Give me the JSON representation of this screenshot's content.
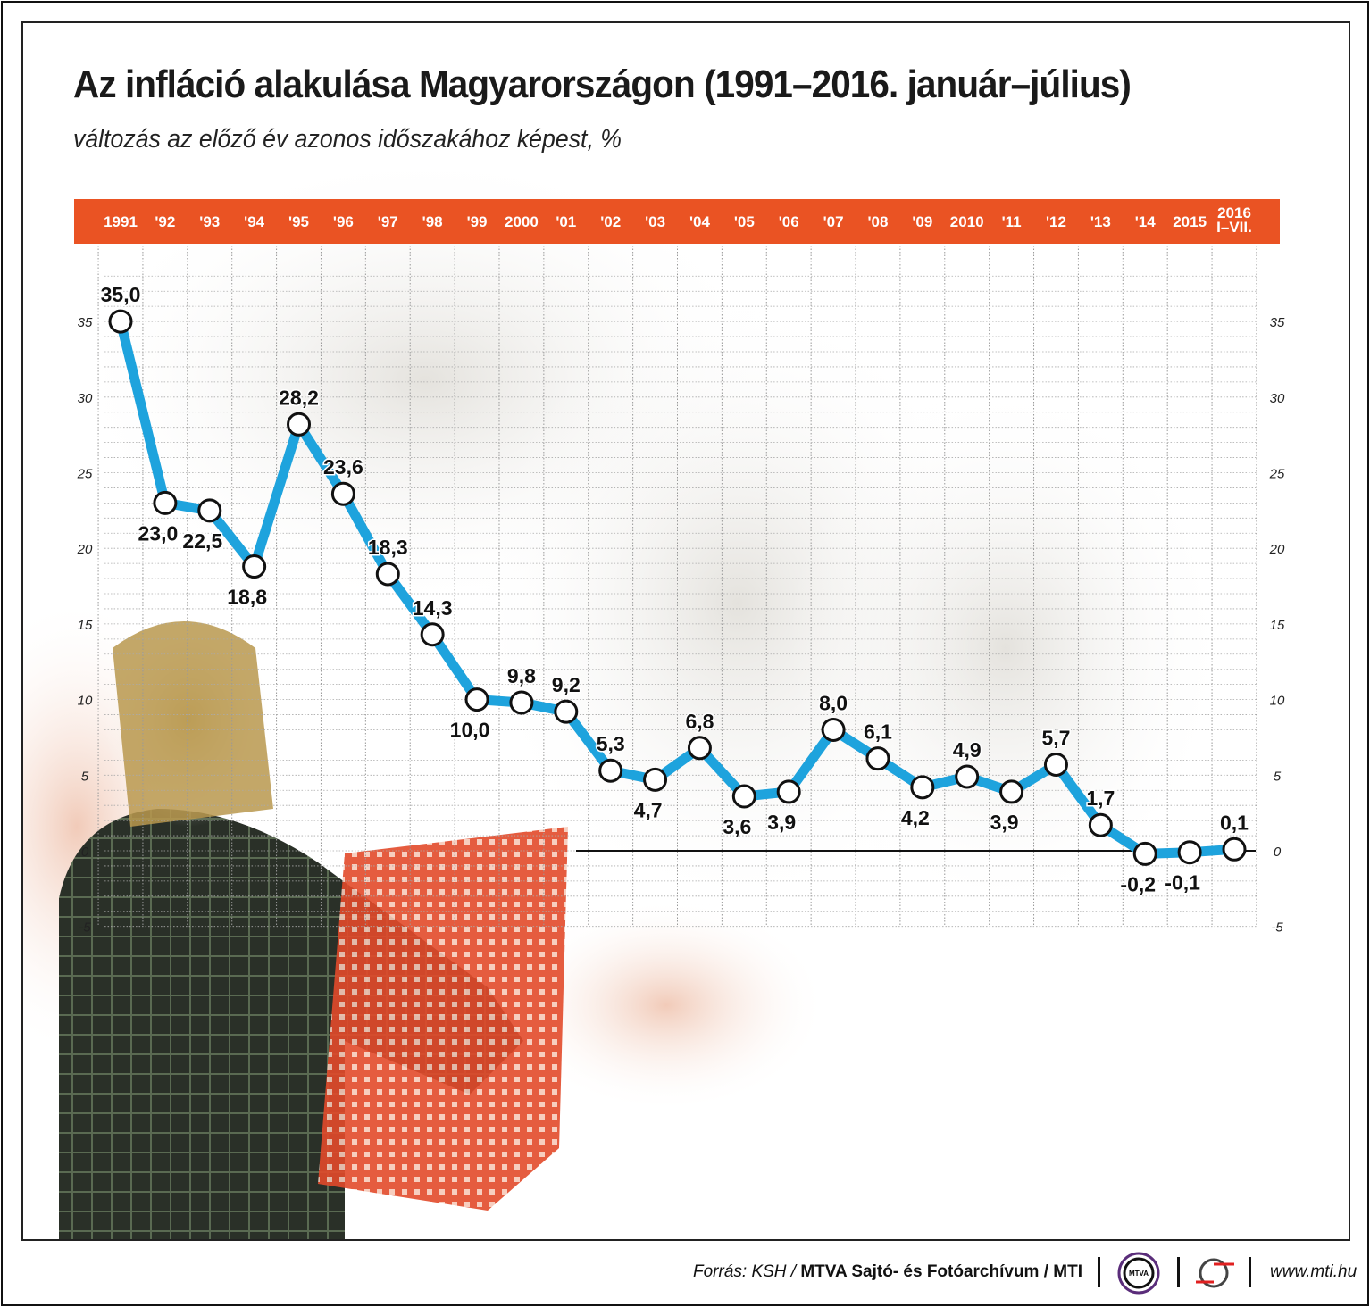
{
  "header": {
    "title": "Az infláció alakulása Magyarországon (1991–2016. január–július)",
    "subtitle": "változás az előző év azonos időszakához képest, %"
  },
  "chart_data": {
    "type": "line",
    "categories": [
      "1991",
      "'92",
      "'93",
      "'94",
      "'95",
      "'96",
      "'97",
      "'98",
      "'99",
      "2000",
      "'01",
      "'02",
      "'03",
      "'04",
      "'05",
      "'06",
      "'07",
      "'08",
      "'09",
      "2010",
      "'11",
      "'12",
      "'13",
      "'14",
      "2015",
      "2016 I–VII."
    ],
    "category_lines": [
      [
        "1991"
      ],
      [
        "'92"
      ],
      [
        "'93"
      ],
      [
        "'94"
      ],
      [
        "'95"
      ],
      [
        "'96"
      ],
      [
        "'97"
      ],
      [
        "'98"
      ],
      [
        "'99"
      ],
      [
        "2000"
      ],
      [
        "'01"
      ],
      [
        "'02"
      ],
      [
        "'03"
      ],
      [
        "'04"
      ],
      [
        "'05"
      ],
      [
        "'06"
      ],
      [
        "'07"
      ],
      [
        "'08"
      ],
      [
        "'09"
      ],
      [
        "2010"
      ],
      [
        "'11"
      ],
      [
        "'12"
      ],
      [
        "'13"
      ],
      [
        "'14"
      ],
      [
        "2015"
      ],
      [
        "2016",
        "I–VII."
      ]
    ],
    "values": [
      35.0,
      23.0,
      22.5,
      18.8,
      28.2,
      23.6,
      18.3,
      14.3,
      10.0,
      9.8,
      9.2,
      5.3,
      4.7,
      6.8,
      3.6,
      3.9,
      8.0,
      6.1,
      4.2,
      4.9,
      3.9,
      5.7,
      1.7,
      -0.2,
      -0.1,
      0.1
    ],
    "data_labels": [
      "35,0",
      "23,0",
      "22,5",
      "18,8",
      "28,2",
      "23,6",
      "18,3",
      "14,3",
      "10,0",
      "9,8",
      "9,2",
      "5,3",
      "4,7",
      "6,8",
      "3,6",
      "3,9",
      "8,0",
      "6,1",
      "4,2",
      "4,9",
      "3,9",
      "5,7",
      "1,7",
      "-0,2",
      "-0,1",
      "0,1"
    ],
    "label_position": [
      "above",
      "below",
      "below",
      "below",
      "above",
      "above",
      "above",
      "above",
      "below",
      "above",
      "above",
      "above",
      "below",
      "above",
      "below",
      "below",
      "above",
      "above",
      "below",
      "above",
      "below",
      "above",
      "above",
      "below",
      "below",
      "above"
    ],
    "y_ticks": [
      35,
      30,
      25,
      20,
      15,
      10,
      5,
      0,
      -5
    ],
    "y_tick_labels": [
      "35",
      "30",
      "25",
      "20",
      "15",
      "10",
      "5",
      "0",
      "-5"
    ],
    "ylim": [
      -5,
      38
    ],
    "grid": true,
    "colors": {
      "line": "#1ea3dd",
      "band": "#ea5323",
      "marker_fill": "#ffffff",
      "marker_stroke": "#111111"
    }
  },
  "footer": {
    "source_prefix": "Forrás: KSH / ",
    "source_bold": "MTVA Sajtó- és Fotóarchívum / MTI",
    "logo_mtva": "MTVA",
    "url": "www.mti.hu"
  }
}
